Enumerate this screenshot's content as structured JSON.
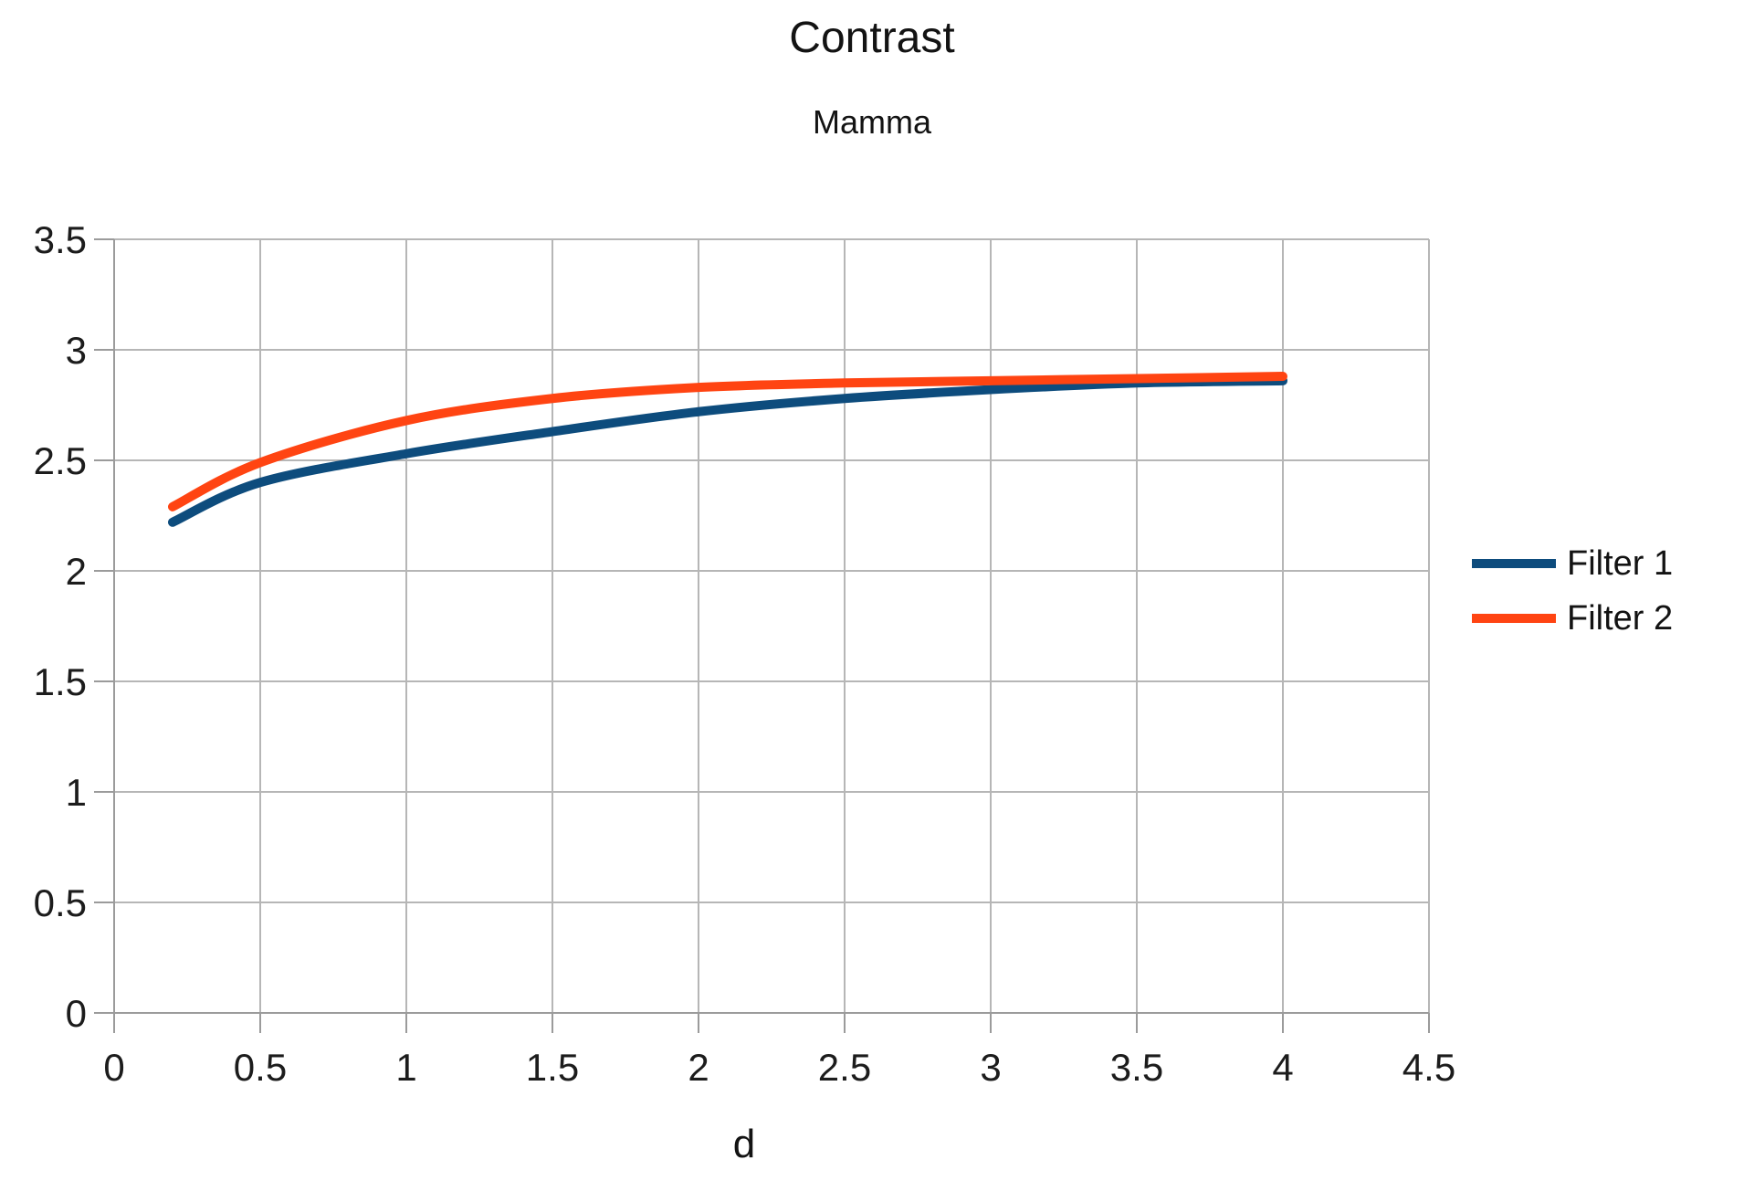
{
  "title": "Contrast",
  "subtitle": "Mamma",
  "colors": {
    "filter1": "#0d4c7d",
    "filter2": "#ff4412",
    "grid": "#b6b6b6",
    "axis": "#9b9b9b",
    "tick_text": "#1c1c1c",
    "background": "#ffffff"
  },
  "chart_data": {
    "type": "line",
    "title": "Contrast",
    "subtitle": "Mamma",
    "xlabel": "d",
    "ylabel": "",
    "xlim": [
      0,
      4.5
    ],
    "ylim": [
      0,
      3.5
    ],
    "xticks": [
      "0",
      "0.5",
      "1",
      "1.5",
      "2",
      "2.5",
      "3",
      "3.5",
      "4",
      "4.5"
    ],
    "yticks": [
      "0",
      "0.5",
      "1",
      "1.5",
      "2",
      "2.5",
      "3",
      "3.5"
    ],
    "grid": true,
    "legend_position": "right",
    "line_smooth": true,
    "x": [
      0.2,
      0.5,
      1.0,
      1.5,
      2.0,
      2.5,
      3.0,
      3.5,
      4.0
    ],
    "series": [
      {
        "name": "Filter 1",
        "color": "#0d4c7d",
        "values": [
          2.22,
          2.4,
          2.53,
          2.63,
          2.72,
          2.78,
          2.82,
          2.85,
          2.86
        ]
      },
      {
        "name": "Filter 2",
        "color": "#ff4412",
        "values": [
          2.29,
          2.49,
          2.68,
          2.78,
          2.83,
          2.85,
          2.86,
          2.87,
          2.88
        ]
      }
    ]
  }
}
